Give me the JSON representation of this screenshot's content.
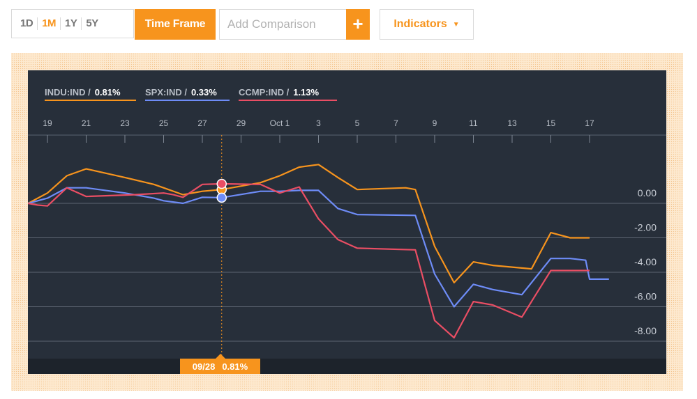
{
  "toolbar": {
    "ranges": [
      "1D",
      "1M",
      "1Y",
      "5Y"
    ],
    "active_range": "1M",
    "time_frame_label": "Time Frame",
    "comparison_placeholder": "Add Comparison",
    "plus_label": "+",
    "indicators_label": "Indicators",
    "indicators_icon": "caret-down-icon"
  },
  "colors": {
    "accent": "#f7941d",
    "chart_bg": "#272f3a",
    "INDU": "#f7941d",
    "SPX": "#6e8cf7",
    "CCMP": "#ea4e64"
  },
  "legend": [
    {
      "key": "INDU",
      "name": "INDU:IND /",
      "value": "0.81%"
    },
    {
      "key": "SPX",
      "name": "SPX:IND /",
      "value": "0.33%"
    },
    {
      "key": "CCMP",
      "name": "CCMP:IND /",
      "value": "1.13%"
    }
  ],
  "crosshair": {
    "date": "09/28",
    "value": "0.81%",
    "x": 28.0
  },
  "chart_data": {
    "type": "line",
    "title": "",
    "xlabel": "",
    "ylabel": "",
    "x_ticks": [
      {
        "x": 19,
        "label": "19"
      },
      {
        "x": 21,
        "label": "21"
      },
      {
        "x": 23,
        "label": "23"
      },
      {
        "x": 25,
        "label": "25"
      },
      {
        "x": 27,
        "label": "27"
      },
      {
        "x": 29,
        "label": "29"
      },
      {
        "x": 31,
        "label": "Oct 1"
      },
      {
        "x": 33,
        "label": "3"
      },
      {
        "x": 35,
        "label": "5"
      },
      {
        "x": 37,
        "label": "7"
      },
      {
        "x": 39,
        "label": "9"
      },
      {
        "x": 41,
        "label": "11"
      },
      {
        "x": 43,
        "label": "13"
      },
      {
        "x": 45,
        "label": "15"
      },
      {
        "x": 47,
        "label": "17"
      }
    ],
    "xlim": [
      18.0,
      51.0
    ],
    "y_ticks": [
      0,
      -2,
      -4,
      -6,
      -8
    ],
    "y_tick_labels": [
      "0.00",
      "-2.00",
      "-4.00",
      "-6.00",
      "-8.00"
    ],
    "ylim": [
      -8.5,
      3.0
    ],
    "grid": true,
    "legend_position": "top-left",
    "series": [
      {
        "name": "INDU:IND",
        "x": [
          18.0,
          19.0,
          20.0,
          21.0,
          23.0,
          24.5,
          25.0,
          26.0,
          27.0,
          28.0,
          30.0,
          31.0,
          32.0,
          33.0,
          34.0,
          35.0,
          37.5,
          38.0,
          39.0,
          40.0,
          41.0,
          42.0,
          44.0,
          45.0,
          46.0,
          47.0
        ],
        "y": [
          0.0,
          0.6,
          1.6,
          2.0,
          1.5,
          1.1,
          0.9,
          0.5,
          0.7,
          0.8,
          1.2,
          1.6,
          2.1,
          2.25,
          1.5,
          0.8,
          0.9,
          0.8,
          -2.5,
          -4.6,
          -3.4,
          -3.6,
          -3.8,
          -1.7,
          -2.0,
          -2.0
        ]
      },
      {
        "name": "SPX:IND",
        "x": [
          18.0,
          18.5,
          19.0,
          20.0,
          21.0,
          23.0,
          24.5,
          25.0,
          26.0,
          27.0,
          28.0,
          30.0,
          31.0,
          32.0,
          33.0,
          34.0,
          35.0,
          38.0,
          39.0,
          40.0,
          41.0,
          42.0,
          43.5,
          45.0,
          46.0,
          46.8,
          47.0,
          48.0
        ],
        "y": [
          0.0,
          0.15,
          0.3,
          0.9,
          0.9,
          0.6,
          0.3,
          0.15,
          0.0,
          0.35,
          0.33,
          0.7,
          0.7,
          0.75,
          0.75,
          -0.3,
          -0.65,
          -0.7,
          -4.1,
          -6.0,
          -4.7,
          -5.0,
          -5.3,
          -3.2,
          -3.2,
          -3.3,
          -4.4,
          -4.4
        ]
      },
      {
        "name": "CCMP:IND",
        "x": [
          18.0,
          18.5,
          19.0,
          20.0,
          21.0,
          23.5,
          25.0,
          25.5,
          26.0,
          27.0,
          28.0,
          30.0,
          31.0,
          32.0,
          33.0,
          34.0,
          35.0,
          38.0,
          39.0,
          40.0,
          41.0,
          42.0,
          43.5,
          45.0,
          46.0,
          47.0
        ],
        "y": [
          0.0,
          -0.1,
          -0.15,
          0.9,
          0.4,
          0.5,
          0.6,
          0.5,
          0.35,
          1.1,
          1.13,
          1.1,
          0.6,
          0.95,
          -0.9,
          -2.1,
          -2.6,
          -2.7,
          -6.8,
          -7.8,
          -5.7,
          -5.9,
          -6.6,
          -3.9,
          -3.9,
          -3.9
        ]
      }
    ]
  }
}
